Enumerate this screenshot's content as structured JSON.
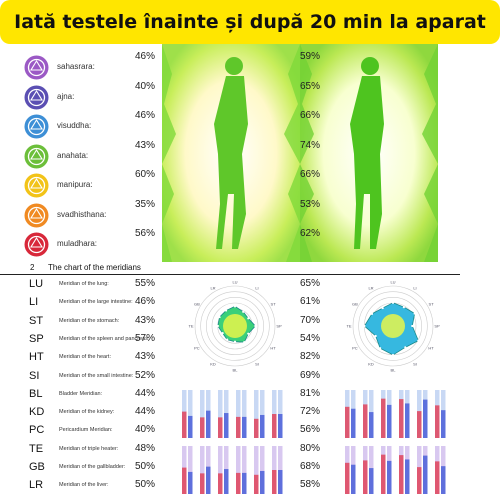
{
  "banner": {
    "title": "Iată testele înainte și după 20 min la aparat"
  },
  "chakras": [
    {
      "name": "sahasrara:",
      "before": "46%",
      "after": "59%",
      "color": "#9b59c5",
      "icon": "crown-chakra-icon"
    },
    {
      "name": "ajna:",
      "before": "40%",
      "after": "65%",
      "color": "#5b4fb3",
      "icon": "third-eye-chakra-icon"
    },
    {
      "name": "visuddha:",
      "before": "46%",
      "after": "66%",
      "color": "#3d8fd6",
      "icon": "throat-chakra-icon"
    },
    {
      "name": "anahata:",
      "before": "43%",
      "after": "74%",
      "color": "#6cbf3a",
      "icon": "heart-chakra-icon"
    },
    {
      "name": "manipura:",
      "before": "60%",
      "after": "66%",
      "color": "#f2c318",
      "icon": "solar-plexus-chakra-icon"
    },
    {
      "name": "svadhisthana:",
      "before": "35%",
      "after": "53%",
      "color": "#f08a22",
      "icon": "sacral-chakra-icon"
    },
    {
      "name": "muladhara:",
      "before": "56%",
      "after": "62%",
      "color": "#d8283a",
      "icon": "root-chakra-icon"
    }
  ],
  "section": {
    "number": "2",
    "title": "The chart of the meridians"
  },
  "meridians": [
    {
      "code": "LU",
      "name": "Meridian of the lung:",
      "before": "55%",
      "after": "65%"
    },
    {
      "code": "LI",
      "name": "Meridian of the large intestine:",
      "before": "46%",
      "after": "61%"
    },
    {
      "code": "ST",
      "name": "Meridian of the stomach:",
      "before": "43%",
      "after": "70%"
    },
    {
      "code": "SP",
      "name": "Meridian of the spleen and pancreas:",
      "before": "57%",
      "after": "54%"
    },
    {
      "code": "HT",
      "name": "Meridian of the heart:",
      "before": "43%",
      "after": "82%"
    },
    {
      "code": "SI",
      "name": "Meridian of the small intestine:",
      "before": "52%",
      "after": "69%"
    },
    {
      "code": "BL",
      "name": "Bladder Meridian:",
      "before": "44%",
      "after": "81%"
    },
    {
      "code": "KD",
      "name": "Meridian of the kidney:",
      "before": "44%",
      "after": "72%"
    },
    {
      "code": "PC",
      "name": "Pericardium Meridian:",
      "before": "40%",
      "after": "56%"
    },
    {
      "code": "TE",
      "name": "Meridian of triple heater:",
      "before": "48%",
      "after": "80%"
    },
    {
      "code": "GB",
      "name": "Meridian of the gallbladder:",
      "before": "50%",
      "after": "68%"
    },
    {
      "code": "LR",
      "name": "Meridian of the liver:",
      "before": "50%",
      "after": "58%"
    }
  ],
  "radar_labels": [
    "LU",
    "LI",
    "ST",
    "SP",
    "HT",
    "SI",
    "BL",
    "KD",
    "PC",
    "TE",
    "GB",
    "LR"
  ],
  "colors": {
    "banner": "#ffe600",
    "aura_green": "#66d21a",
    "silhouette": "#7ee04a"
  }
}
